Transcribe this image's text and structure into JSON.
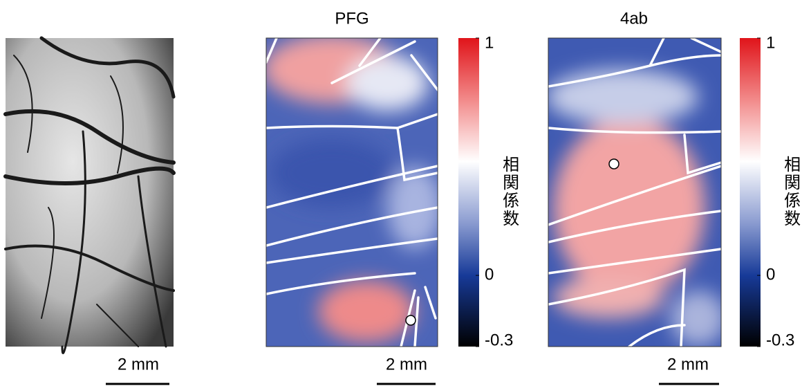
{
  "panels": [
    {
      "scale_bar": "2 mm"
    },
    {
      "title": "PFG",
      "scale_bar": "2 mm",
      "colorbar": {
        "label": "相関係数",
        "lim": [
          -0.3,
          1
        ],
        "ticks": [
          1,
          0,
          -0.3
        ]
      }
    },
    {
      "title": "4ab",
      "scale_bar": "2 mm",
      "colorbar": {
        "label": "相関係数",
        "lim": [
          -0.3,
          1
        ],
        "ticks": [
          1,
          0,
          -0.3
        ]
      }
    }
  ]
}
